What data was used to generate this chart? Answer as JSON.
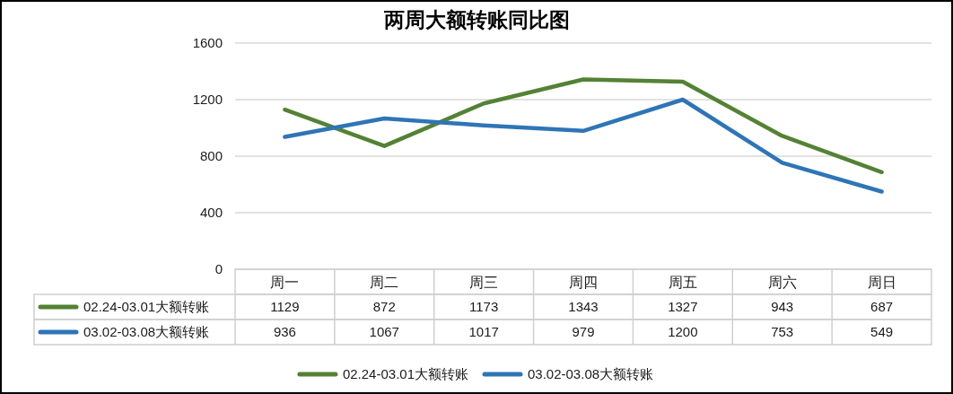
{
  "chart_data": {
    "type": "line",
    "title": "两周大额转账同比图",
    "categories": [
      "周一",
      "周二",
      "周三",
      "周四",
      "周五",
      "周六",
      "周日"
    ],
    "series": [
      {
        "name": "02.24-03.01大额转账",
        "color": "#548235",
        "values": [
          1129,
          872,
          1173,
          1343,
          1327,
          943,
          687
        ]
      },
      {
        "name": "03.02-03.08大额转账",
        "color": "#2e75b6",
        "values": [
          936,
          1067,
          1017,
          979,
          1200,
          753,
          549
        ]
      }
    ],
    "ylim": [
      0,
      1600
    ],
    "yticks": [
      0,
      400,
      800,
      1200,
      1600
    ],
    "grid": "y",
    "legend": "bottom",
    "data_labels": true
  }
}
